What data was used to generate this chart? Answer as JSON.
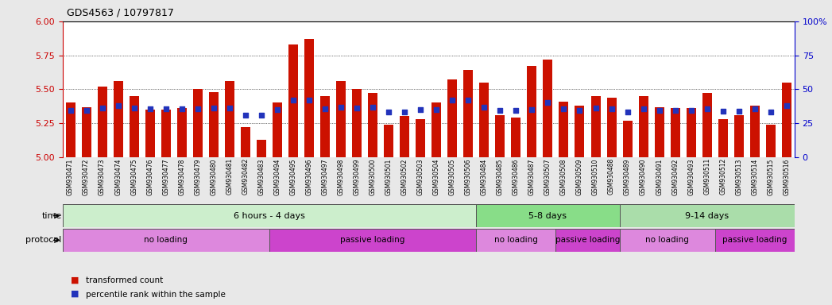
{
  "title": "GDS4563 / 10797817",
  "samples": [
    "GSM930471",
    "GSM930472",
    "GSM930473",
    "GSM930474",
    "GSM930475",
    "GSM930476",
    "GSM930477",
    "GSM930478",
    "GSM930479",
    "GSM930480",
    "GSM930481",
    "GSM930482",
    "GSM930483",
    "GSM930494",
    "GSM930495",
    "GSM930496",
    "GSM930497",
    "GSM930498",
    "GSM930499",
    "GSM930500",
    "GSM930501",
    "GSM930502",
    "GSM930503",
    "GSM930504",
    "GSM930505",
    "GSM930506",
    "GSM930484",
    "GSM930485",
    "GSM930486",
    "GSM930487",
    "GSM930507",
    "GSM930508",
    "GSM930509",
    "GSM930510",
    "GSM930488",
    "GSM930489",
    "GSM930490",
    "GSM930491",
    "GSM930492",
    "GSM930493",
    "GSM930511",
    "GSM930512",
    "GSM930513",
    "GSM930514",
    "GSM930515",
    "GSM930516"
  ],
  "bar_heights": [
    5.4,
    5.37,
    5.52,
    5.56,
    5.45,
    5.35,
    5.35,
    5.36,
    5.5,
    5.48,
    5.56,
    5.22,
    5.13,
    5.4,
    5.83,
    5.87,
    5.45,
    5.56,
    5.5,
    5.47,
    5.24,
    5.3,
    5.28,
    5.4,
    5.57,
    5.64,
    5.55,
    5.31,
    5.29,
    5.67,
    5.72,
    5.41,
    5.38,
    5.45,
    5.44,
    5.27,
    5.45,
    5.37,
    5.36,
    5.36,
    5.47,
    5.28,
    5.31,
    5.38,
    5.24,
    5.55
  ],
  "blue_markers": [
    5.345,
    5.345,
    5.36,
    5.38,
    5.36,
    5.355,
    5.355,
    5.355,
    5.355,
    5.36,
    5.36,
    5.31,
    5.31,
    5.35,
    5.42,
    5.42,
    5.355,
    5.365,
    5.36,
    5.365,
    5.33,
    5.33,
    5.35,
    5.35,
    5.42,
    5.42,
    5.37,
    5.345,
    5.345,
    5.35,
    5.4,
    5.355,
    5.345,
    5.36,
    5.355,
    5.33,
    5.355,
    5.345,
    5.345,
    5.345,
    5.355,
    5.34,
    5.34,
    5.355,
    5.335,
    5.38
  ],
  "ylim_left": [
    5.0,
    6.0
  ],
  "ylim_right": [
    0,
    100
  ],
  "yticks_left": [
    5.0,
    5.25,
    5.5,
    5.75,
    6.0
  ],
  "yticks_right": [
    0,
    25,
    50,
    75,
    100
  ],
  "bar_color": "#cc1100",
  "marker_color": "#2233bb",
  "bar_bottom": 5.0,
  "time_bands": [
    {
      "label": "6 hours - 4 days",
      "start": 0,
      "end": 26,
      "color": "#cceecc"
    },
    {
      "label": "5-8 days",
      "start": 26,
      "end": 35,
      "color": "#88dd88"
    },
    {
      "label": "9-14 days",
      "start": 35,
      "end": 46,
      "color": "#aaddaa"
    }
  ],
  "protocol_bands": [
    {
      "label": "no loading",
      "start": 0,
      "end": 13,
      "color": "#dd88dd"
    },
    {
      "label": "passive loading",
      "start": 13,
      "end": 26,
      "color": "#cc44cc"
    },
    {
      "label": "no loading",
      "start": 26,
      "end": 31,
      "color": "#dd88dd"
    },
    {
      "label": "passive loading",
      "start": 31,
      "end": 35,
      "color": "#cc44cc"
    },
    {
      "label": "no loading",
      "start": 35,
      "end": 41,
      "color": "#dd88dd"
    },
    {
      "label": "passive loading",
      "start": 41,
      "end": 46,
      "color": "#cc44cc"
    }
  ],
  "bg_color": "#e8e8e8",
  "plot_bg": "#ffffff",
  "grid_dotted_levels": [
    5.25,
    5.5,
    5.75
  ],
  "left_axis_color": "#cc0000",
  "right_axis_color": "#0000cc"
}
